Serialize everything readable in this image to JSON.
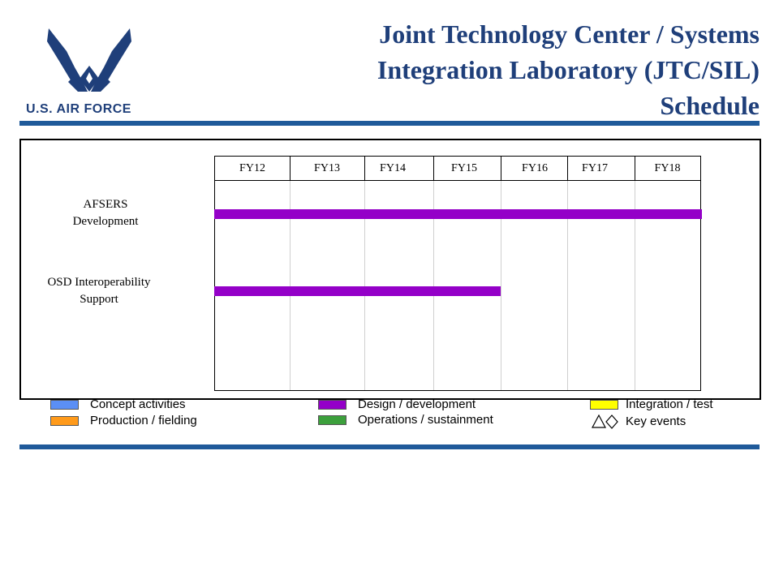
{
  "header": {
    "logo_text": "U.S. AIR FORCE",
    "title_line1": "Joint Technology Center / Systems",
    "title_line2": "Integration Laboratory (JTC/SIL)",
    "title_line3": "Schedule"
  },
  "schedule": {
    "fiscal_years": [
      "FY12",
      "FY13",
      "FY14",
      "FY15",
      "FY16",
      "FY17",
      "FY18"
    ],
    "rows": [
      {
        "label_line1": "AFSERS",
        "label_line2": "Development",
        "status": "Design / development",
        "start": "FY12",
        "end": "FY18"
      },
      {
        "label_line1": "OSD Interoperability",
        "label_line2": "Support",
        "status": "Design / development",
        "start": "FY12",
        "end": "FY15"
      }
    ]
  },
  "legend": {
    "concept": {
      "label": "Concept activities",
      "color": "#5b8ff5"
    },
    "production": {
      "label": "Production / fielding",
      "color": "#ff9a1a"
    },
    "design": {
      "label": "Design / development",
      "color": "#9400c8"
    },
    "operations": {
      "label": "Operations / sustainment",
      "color": "#3ca03c"
    },
    "integration": {
      "label": "Integration / test",
      "color": "#ffff00"
    },
    "key_events": {
      "label": "Key events",
      "icons": [
        "triangle-icon",
        "diamond-icon"
      ]
    }
  },
  "colors": {
    "brand": "#1f3f7a",
    "rule": "#1f5a9a"
  }
}
